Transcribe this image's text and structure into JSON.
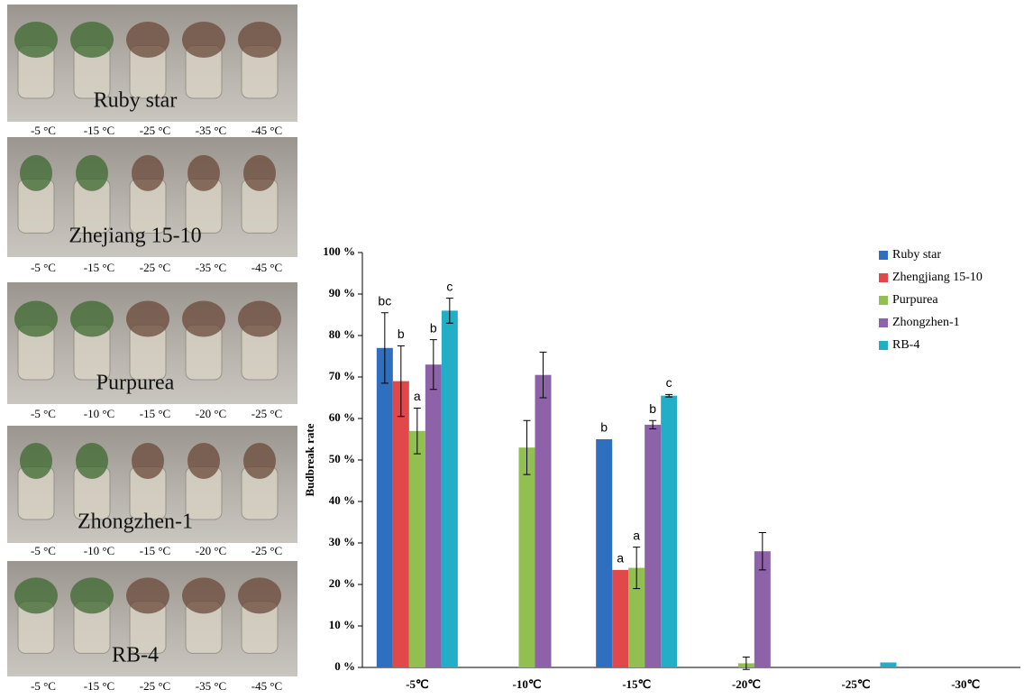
{
  "chart_data": {
    "type": "bar",
    "ylabel": "Budbreak rate",
    "categories": [
      "-5℃",
      "-10℃",
      "-15℃",
      "-20℃",
      "-25℃",
      "-30℃"
    ],
    "series": [
      {
        "name": "Ruby star",
        "color": "#2f6fbf",
        "values": [
          77,
          0,
          55,
          0,
          0,
          0
        ],
        "errors": [
          8.5,
          0,
          0,
          0,
          0,
          0
        ],
        "letters": [
          "bc",
          null,
          "b",
          null,
          null,
          null
        ]
      },
      {
        "name": "Zhengjiang 15-10",
        "color": "#e0484a",
        "values": [
          69,
          0,
          23.5,
          0,
          0,
          0
        ],
        "errors": [
          8.5,
          0,
          0,
          0,
          0,
          0
        ],
        "letters": [
          "b",
          null,
          "a",
          null,
          null,
          null
        ]
      },
      {
        "name": "Purpurea",
        "color": "#92c050",
        "values": [
          57,
          53,
          24,
          1,
          0,
          0
        ],
        "errors": [
          5.5,
          6.5,
          5,
          1.5,
          0,
          0
        ],
        "letters": [
          "a",
          null,
          "a",
          null,
          null,
          null
        ]
      },
      {
        "name": "Zhongzhen-1",
        "color": "#8e62a8",
        "values": [
          73,
          70.5,
          58.5,
          28,
          0,
          0
        ],
        "errors": [
          6,
          5.5,
          1,
          4.5,
          0,
          0
        ],
        "letters": [
          "b",
          null,
          "b",
          null,
          null,
          null
        ]
      },
      {
        "name": "RB-4",
        "color": "#22aec6",
        "values": [
          86,
          0,
          65.5,
          0,
          1.2,
          0
        ],
        "errors": [
          3,
          0,
          0.3,
          0,
          0,
          0
        ],
        "letters": [
          "c",
          null,
          "c",
          null,
          null,
          null
        ]
      }
    ],
    "ylim": [
      0,
      100
    ],
    "yticks": [
      {
        "value": 0,
        "label": "0 %"
      },
      {
        "value": 10,
        "label": "10 %"
      },
      {
        "value": 20,
        "label": "20 %"
      },
      {
        "value": 30,
        "label": "30 %"
      },
      {
        "value": 40,
        "label": "40 %"
      },
      {
        "value": 50,
        "label": "50 %"
      },
      {
        "value": 60,
        "label": "60 %"
      },
      {
        "value": 70,
        "label": "70 %"
      },
      {
        "value": 80,
        "label": "80 %"
      },
      {
        "value": 90,
        "label": "90 %"
      },
      {
        "value": 100,
        "label": "100 %"
      }
    ],
    "legend": "top-right"
  },
  "photo_panels": [
    {
      "label": "Ruby star",
      "temperatures": [
        "-5 °C",
        "-15 °C",
        "-25 °C",
        "-35 °C",
        "-45 °C"
      ]
    },
    {
      "label": "Zhejiang 15-10",
      "temperatures": [
        "-5 °C",
        "-15 °C",
        "-25 °C",
        "-35 °C",
        "-45 °C"
      ]
    },
    {
      "label": "Purpurea",
      "temperatures": [
        "-5 °C",
        "-10 °C",
        "-15 °C",
        "-20 °C",
        "-25 °C"
      ]
    },
    {
      "label": "Zhongzhen-1",
      "temperatures": [
        "-5 °C",
        "-10 °C",
        "-15 °C",
        "-20 °C",
        "-25 °C"
      ]
    },
    {
      "label": "RB-4",
      "temperatures": [
        "-5 °C",
        "-15 °C",
        "-25 °C",
        "-35 °C",
        "-45 °C"
      ]
    }
  ]
}
